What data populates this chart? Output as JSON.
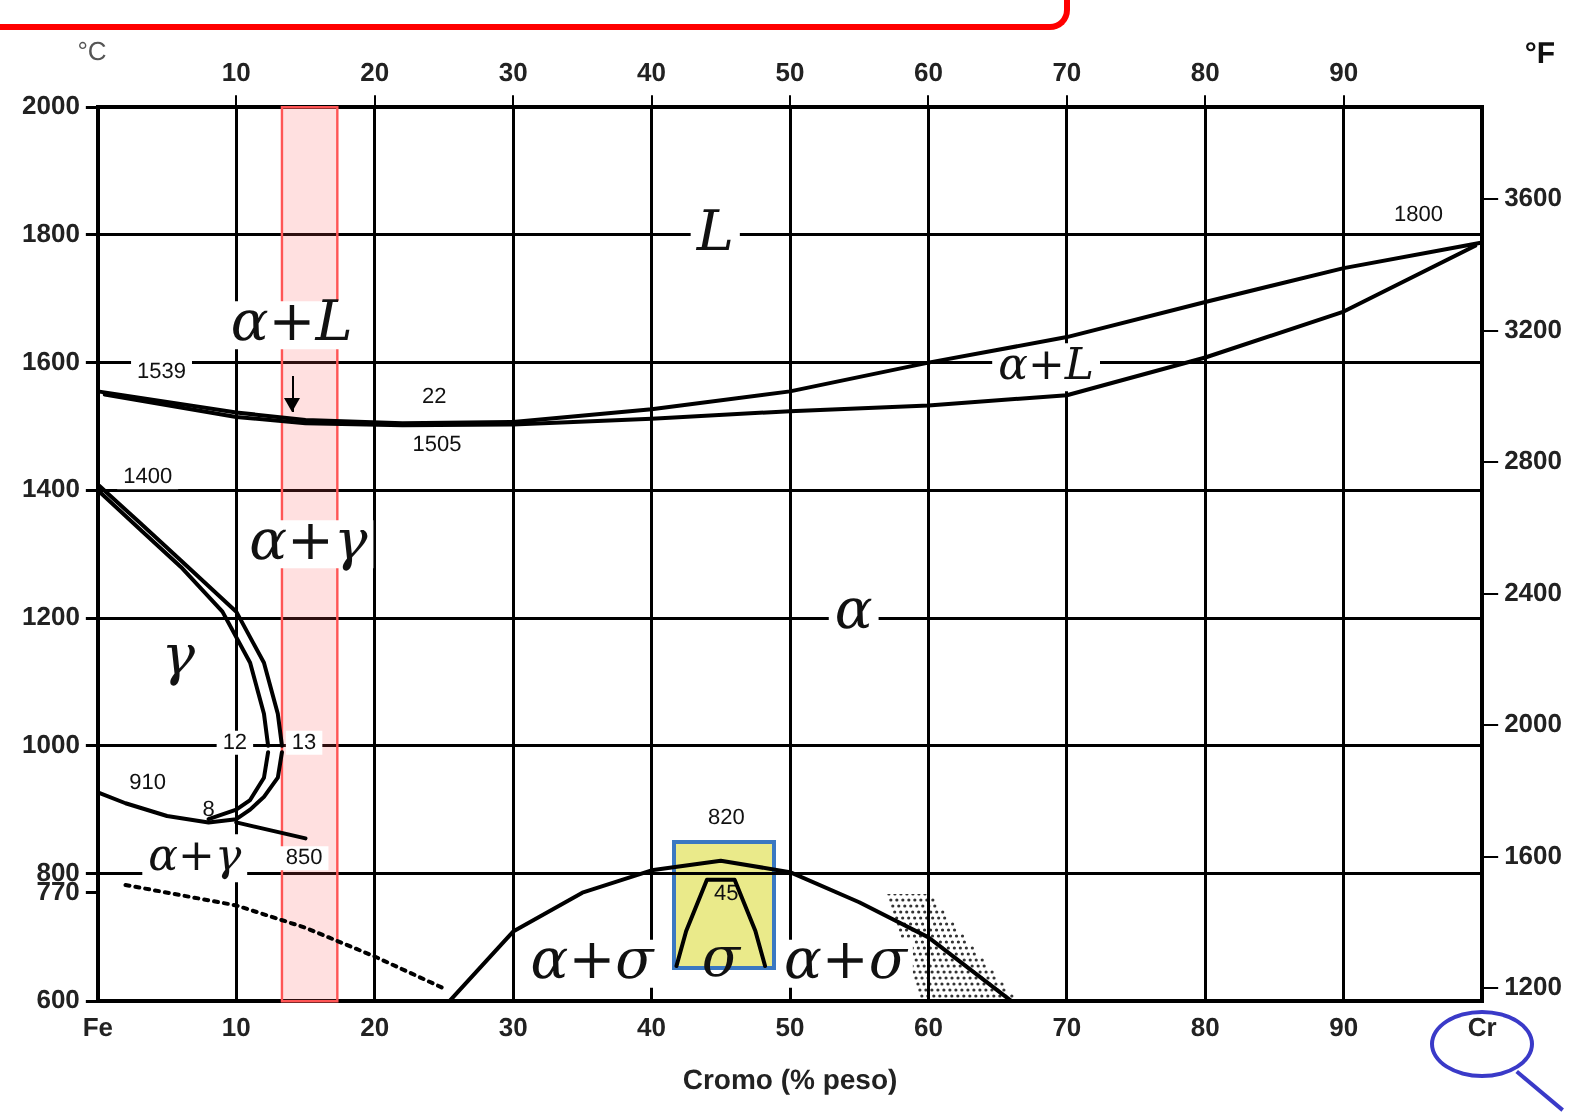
{
  "chart_data": {
    "type": "line",
    "xlabel": "Cromo (% peso)",
    "ylabel": "°C",
    "y2label": "°F",
    "xlim": [
      0,
      100
    ],
    "xticks": [
      {
        "value": 0,
        "label": "Fe"
      },
      10,
      20,
      30,
      40,
      50,
      60,
      70,
      80,
      90,
      {
        "value": 100,
        "label": "Cr"
      }
    ],
    "x2lim": [
      0,
      100
    ],
    "x2ticks": [
      10,
      20,
      30,
      40,
      50,
      60,
      70,
      80,
      90
    ],
    "ylim": [
      600,
      2000
    ],
    "yticks": [
      600,
      {
        "value": 770,
        "label": "770"
      },
      800,
      1000,
      1200,
      1400,
      1600,
      1800,
      2000
    ],
    "y2lim": [
      1160,
      3880
    ],
    "y2ticks": [
      1200,
      1600,
      2000,
      2400,
      2800,
      3200,
      3600
    ],
    "grid": true,
    "legend": false,
    "marker": "none",
    "series": [
      {
        "color": "#000000",
        "x": [
          0,
          10,
          15,
          22,
          30,
          40,
          50,
          60,
          70,
          80,
          90,
          100
        ],
        "values": [
          1555,
          1522,
          1510,
          1505,
          1507,
          1527,
          1555,
          1600,
          1640,
          1695,
          1748,
          1788
        ]
      },
      {
        "color": "#000000",
        "x": [
          0.5,
          10,
          15,
          22,
          30,
          40,
          50,
          60,
          70,
          80,
          90,
          99.5
        ],
        "values": [
          1550,
          1515,
          1505,
          1502,
          1503,
          1512,
          1524,
          1533,
          1549,
          1608,
          1680,
          1783
        ]
      },
      {
        "color": "#000000",
        "x": [
          0,
          3,
          6,
          10,
          12,
          13,
          13.3
        ],
        "values": [
          1409,
          1350,
          1290,
          1210,
          1130,
          1050,
          1000
        ]
      },
      {
        "color": "#000000",
        "x": [
          0,
          2,
          5,
          8,
          10,
          11,
          12,
          13,
          13.3
        ],
        "values": [
          927,
          910,
          890,
          880,
          885,
          900,
          920,
          950,
          990
        ]
      },
      {
        "color": "#000000",
        "x": [
          0,
          3,
          6,
          9,
          11,
          12,
          12.3
        ],
        "values": [
          1400,
          1340,
          1280,
          1210,
          1130,
          1050,
          1000
        ]
      },
      {
        "color": "#000000",
        "x": [
          8,
          10,
          11,
          12,
          12.3
        ],
        "values": [
          885,
          900,
          915,
          950,
          990
        ]
      },
      {
        "color": "#000000",
        "x": [
          10,
          15
        ],
        "values": [
          880,
          855
        ]
      },
      {
        "color": "#000000",
        "line_style": "dotted",
        "x": [
          2,
          10,
          15,
          20,
          25
        ],
        "values": [
          782,
          750,
          715,
          670,
          620
        ]
      },
      {
        "color": "#000000",
        "x": [
          25.4,
          30,
          35,
          40,
          45,
          50,
          55,
          60,
          66
        ],
        "values": [
          600,
          709,
          770,
          805,
          820,
          802,
          755,
          700,
          600
        ]
      },
      {
        "color": "#000000",
        "x": [
          41.8,
          42.5,
          44,
          46,
          47.5,
          48.2
        ],
        "values": [
          655,
          710,
          790,
          790,
          710,
          655
        ]
      }
    ],
    "bands": [
      {
        "axis": "x",
        "from": 13.3,
        "to": 17.3,
        "color": "#ff5555"
      }
    ],
    "annotations": [
      "L",
      "α+L",
      "α+L",
      "α+γ",
      "γ",
      "α",
      "α+σ",
      "σ",
      "α+σ",
      "α+γ",
      "1539",
      "1400",
      "22",
      "1505",
      "1800",
      "12",
      "13",
      "910",
      "8",
      "850",
      "820",
      "45"
    ]
  }
}
